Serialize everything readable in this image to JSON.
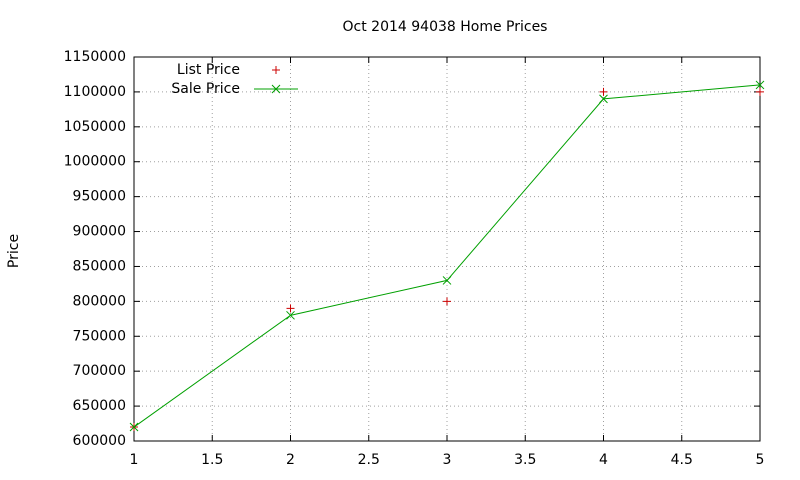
{
  "chart_data": {
    "type": "line",
    "title": "Oct 2014 94038 Home Prices",
    "y_label": "Price",
    "x": [
      1,
      2,
      3,
      4,
      5
    ],
    "series": [
      {
        "name": "List Price",
        "color": "#cc0000",
        "mode": "points",
        "marker": "plus",
        "values": [
          620000,
          790000,
          800000,
          1100000,
          1100000
        ]
      },
      {
        "name": "Sale Price",
        "color": "#00a000",
        "mode": "linespoints",
        "marker": "cross",
        "values": [
          620000,
          780000,
          830000,
          1090000,
          1110000
        ]
      }
    ],
    "xlim": [
      1,
      5
    ],
    "xticks": [
      1,
      1.5,
      2,
      2.5,
      3,
      3.5,
      4,
      4.5,
      5
    ],
    "ylim": [
      600000,
      1150000
    ],
    "yticks": [
      600000,
      650000,
      700000,
      750000,
      800000,
      850000,
      900000,
      950000,
      1000000,
      1050000,
      1100000,
      1150000
    ],
    "grid": true,
    "legend": "top-left"
  }
}
